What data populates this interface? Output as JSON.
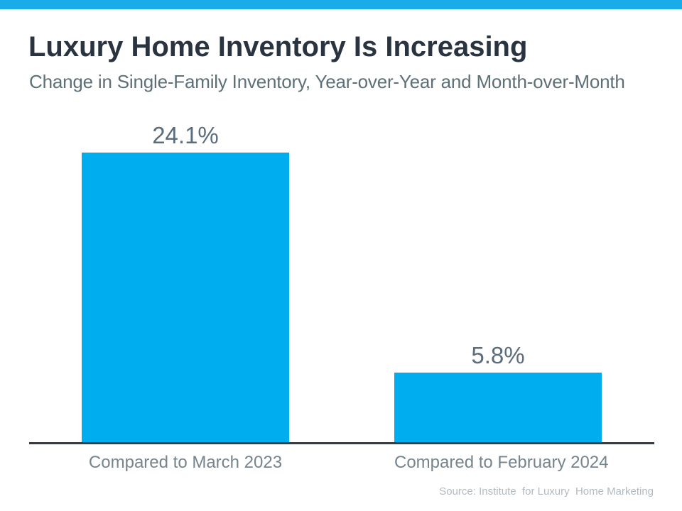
{
  "colors": {
    "accent_bar": "#19ACE9",
    "bar_fill": "#00AEEF",
    "axis_line": "#333B44",
    "title_text": "#2A3440",
    "subtitle_text": "#5D7078",
    "value_label_text": "#5B6C7C",
    "category_label_text": "#76848E",
    "source_text": "#B2BAC1"
  },
  "header": {
    "title": "Luxury Home Inventory Is Increasing",
    "subtitle": "Change in Single-Family Inventory, Year-over-Year and Month-over-Month"
  },
  "footer": {
    "source": "Source: Institute  for Luxury  Home Marketing"
  },
  "chart_data": {
    "type": "bar",
    "title": "Luxury Home Inventory Is Increasing",
    "subtitle": "Change in Single-Family Inventory, Year-over-Year and Month-over-Month",
    "categories": [
      "Compared to March 2023",
      "Compared to February 2024"
    ],
    "values": [
      24.1,
      5.8
    ],
    "value_labels": [
      "24.1%",
      "5.8%"
    ],
    "xlabel": "",
    "ylabel": "",
    "ylim": [
      0,
      24.1
    ],
    "grid": false,
    "legend": false,
    "bar_color": "#00AEEF",
    "source": "Source: Institute  for Luxury  Home Marketing"
  }
}
